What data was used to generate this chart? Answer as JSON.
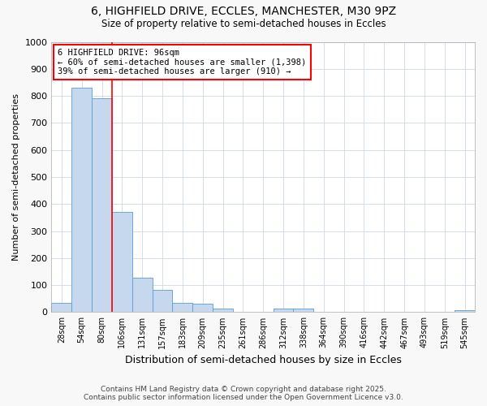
{
  "title1": "6, HIGHFIELD DRIVE, ECCLES, MANCHESTER, M30 9PZ",
  "title2": "Size of property relative to semi-detached houses in Eccles",
  "xlabel": "Distribution of semi-detached houses by size in Eccles",
  "ylabel": "Number of semi-detached properties",
  "categories": [
    "28sqm",
    "54sqm",
    "80sqm",
    "106sqm",
    "131sqm",
    "157sqm",
    "183sqm",
    "209sqm",
    "235sqm",
    "261sqm",
    "286sqm",
    "312sqm",
    "338sqm",
    "364sqm",
    "390sqm",
    "416sqm",
    "442sqm",
    "467sqm",
    "493sqm",
    "519sqm",
    "545sqm"
  ],
  "values": [
    35,
    830,
    790,
    370,
    128,
    83,
    35,
    32,
    13,
    2,
    1,
    12,
    12,
    2,
    1,
    1,
    1,
    1,
    0,
    0,
    6
  ],
  "bar_color": "#c5d8ed",
  "bar_edge_color": "#5b9bd5",
  "red_line_x": 2.5,
  "annotation_line1": "6 HIGHFIELD DRIVE: 96sqm",
  "annotation_line2": "← 60% of semi-detached houses are smaller (1,398)",
  "annotation_line3": "39% of semi-detached houses are larger (910) →",
  "ylim": [
    0,
    1000
  ],
  "yticks": [
    0,
    100,
    200,
    300,
    400,
    500,
    600,
    700,
    800,
    900,
    1000
  ],
  "footer1": "Contains HM Land Registry data © Crown copyright and database right 2025.",
  "footer2": "Contains public sector information licensed under the Open Government Licence v3.0.",
  "bg_color": "#f8f8f8",
  "plot_bg_color": "#ffffff",
  "grid_color": "#d0d8e8"
}
